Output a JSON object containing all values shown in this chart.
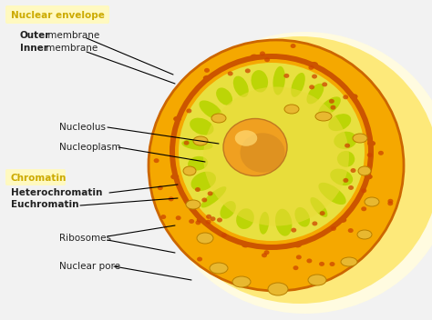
{
  "bg_color": "#f2f2f2",
  "outer_glow1_color": "#fffbe0",
  "outer_glow2_color": "#fde97a",
  "cytoplasm_color": "#f5a800",
  "cytoplasm_edge_color": "#cc6600",
  "nuclear_envelope_outer_color": "#cc5500",
  "nuclear_envelope_fill_color": "#f5a800",
  "nuclear_envelope_inner_color": "#d96400",
  "nucleoplasm_color": "#e8e040",
  "chromatin_color": "#b8d400",
  "nucleolus_color": "#f0a020",
  "nucleolus_shadow": "#c07820",
  "nucleolus_highlight": "#ffd870",
  "ribosome_dot_color": "#cc4400",
  "ribosome_oval_color": "#e8b830",
  "ribosome_oval_edge": "#b88000",
  "nuclear_pore_color": "#cc5500",
  "label_envelope_color": "#ccaa00",
  "label_chromatin_color": "#ccaa00",
  "label_text_color": "#222222",
  "highlight_box_color": "#fff9c0",
  "label_nuclear_envelope": "Nuclear envelope",
  "label_outer": "Outer",
  "label_outer_rest": " membrane",
  "label_inner": "Inner",
  "label_inner_rest": " membrane",
  "label_nucleolus": "Nucleolus",
  "label_nucleoplasm": "Nucleoplasm",
  "label_chromatin": "Chromatin",
  "label_heterochromatin": "Heterochromatin",
  "label_euchromatin": "Euchromatin",
  "label_ribosomes": "Ribosomes",
  "label_nuclear_pore": "Nuclear pore"
}
